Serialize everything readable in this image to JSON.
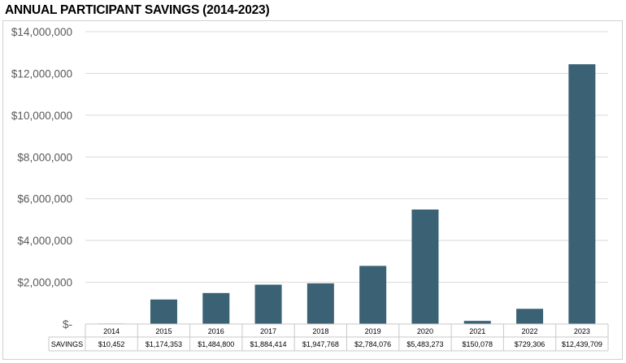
{
  "chart_data": {
    "type": "bar",
    "title": "ANNUAL PARTICIPANT SAVINGS (2014-2023)",
    "xlabel": "",
    "ylabel": "",
    "ylim": [
      0,
      14000000
    ],
    "yticks": [
      {
        "value": 0,
        "label": "$-"
      },
      {
        "value": 2000000,
        "label": "$2,000,000"
      },
      {
        "value": 4000000,
        "label": "$4,000,000"
      },
      {
        "value": 6000000,
        "label": "$6,000,000"
      },
      {
        "value": 8000000,
        "label": "$8,000,000"
      },
      {
        "value": 10000000,
        "label": "$10,000,000"
      },
      {
        "value": 12000000,
        "label": "$12,000,000"
      },
      {
        "value": 14000000,
        "label": "$14,000,000"
      }
    ],
    "grid": true,
    "bar_color": "#3A6274",
    "categories": [
      "2014",
      "2015",
      "2016",
      "2017",
      "2018",
      "2019",
      "2020",
      "2021",
      "2022",
      "2023"
    ],
    "series": [
      {
        "name": "SAVINGS",
        "values": [
          10452,
          1174353,
          1484800,
          1884414,
          1947768,
          2784076,
          5483273,
          150078,
          729306,
          12439709
        ],
        "labels": [
          "$10,452",
          "$1,174,353",
          "$1,484,800",
          "$1,884,414",
          "$1,947,768",
          "$2,784,076",
          "$5,483,273",
          "$150,078",
          "$729,306",
          "$12,439,709"
        ]
      }
    ]
  }
}
